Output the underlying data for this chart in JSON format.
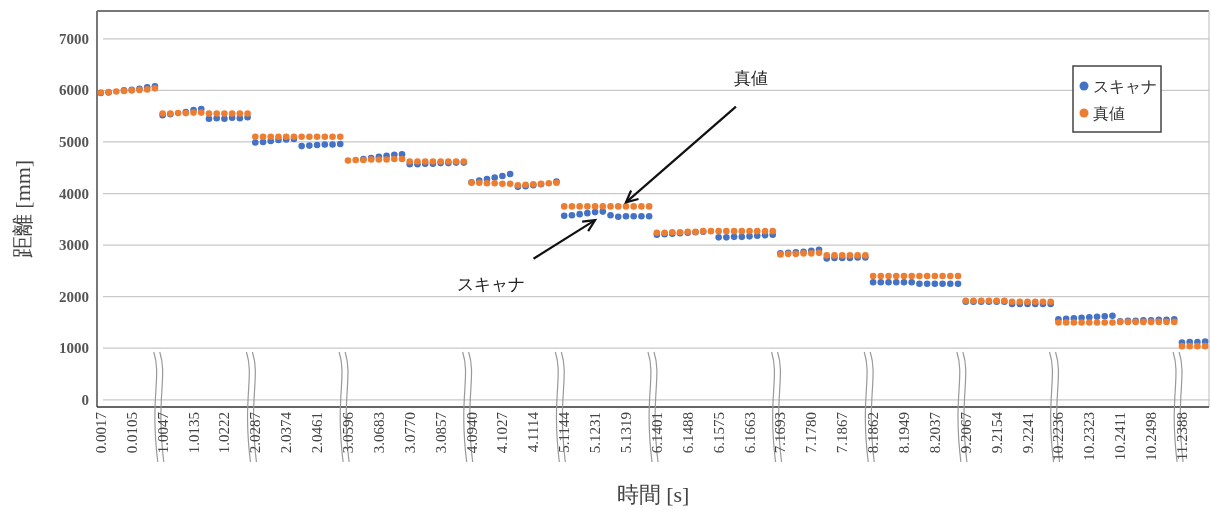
{
  "chart_data": {
    "type": "scatter",
    "xlabel": "時間 [s]",
    "ylabel": "距離 [mm]",
    "categories": [
      "0.0017",
      null,
      null,
      null,
      "0.0105",
      null,
      null,
      null,
      "1.0047",
      null,
      null,
      null,
      "1.0135",
      null,
      null,
      null,
      "1.0222",
      null,
      null,
      null,
      "2.0287",
      null,
      null,
      null,
      "2.0374",
      null,
      null,
      null,
      "2.0461",
      null,
      null,
      null,
      "3.0596",
      null,
      null,
      null,
      "3.0683",
      null,
      null,
      null,
      "3.0770",
      null,
      null,
      null,
      "3.0857",
      null,
      null,
      null,
      "4.0940",
      null,
      null,
      null,
      "4.1027",
      null,
      null,
      null,
      "4.1114",
      null,
      null,
      null,
      "5.1144",
      null,
      null,
      null,
      "5.1231",
      null,
      null,
      null,
      "5.1319",
      null,
      null,
      null,
      "6.1401",
      null,
      null,
      null,
      "6.1488",
      null,
      null,
      null,
      "6.1575",
      null,
      null,
      null,
      "6.1663",
      null,
      null,
      null,
      "7.1693",
      null,
      null,
      null,
      "7.1780",
      null,
      null,
      null,
      "7.1867",
      null,
      null,
      null,
      "8.1862",
      null,
      null,
      null,
      "8.1949",
      null,
      null,
      null,
      "8.2037",
      null,
      null,
      null,
      "9.2067",
      null,
      null,
      null,
      "9.2154",
      null,
      null,
      null,
      "9.2241",
      null,
      null,
      null,
      "10.2236",
      null,
      null,
      null,
      "10.2323",
      null,
      null,
      null,
      "10.2411",
      null,
      null,
      null,
      "10.2498",
      null,
      null,
      null,
      "11.2388",
      null,
      null,
      null
    ],
    "series": [
      {
        "name": "スキャナ",
        "color": "#4472c4",
        "values": [
          5950,
          5960,
          null,
          6000,
          6010,
          6030,
          6060,
          6080,
          5520,
          5540,
          null,
          5580,
          5620,
          5640,
          5450,
          5460,
          5450,
          5470,
          5460,
          5480,
          4990,
          5000,
          5020,
          5040,
          5050,
          5060,
          4920,
          4930,
          4940,
          4950,
          4950,
          4960,
          null,
          null,
          4670,
          4690,
          4710,
          4730,
          4750,
          4760,
          4570,
          4570,
          4580,
          4580,
          4590,
          4590,
          4600,
          4600,
          4220,
          4250,
          4280,
          4310,
          4340,
          4380,
          4130,
          4140,
          4160,
          4180,
          null,
          4230,
          3570,
          3580,
          3600,
          3620,
          3640,
          3650,
          3580,
          3550,
          3560,
          3560,
          3560,
          3560,
          3200,
          3210,
          3220,
          3230,
          3240,
          3250,
          3260,
          null,
          3150,
          3150,
          3160,
          3160,
          3170,
          3180,
          3190,
          3200,
          2840,
          2850,
          2860,
          2870,
          2890,
          2910,
          2740,
          2750,
          2750,
          2750,
          2760,
          2760,
          2280,
          2280,
          2280,
          2280,
          2280,
          2280,
          2250,
          2250,
          2250,
          2250,
          2250,
          2250,
          1900,
          1900,
          1900,
          1900,
          1900,
          1900,
          1860,
          1860,
          1860,
          1860,
          1860,
          1860,
          1560,
          1570,
          1580,
          1590,
          1600,
          1610,
          1620,
          1630,
          1520,
          1530,
          1530,
          1540,
          1540,
          1550,
          1550,
          1560,
          1110,
          1120,
          1120,
          1130
        ]
      },
      {
        "name": "真値",
        "color": "#ed7d31",
        "values": [
          5960,
          5970,
          5980,
          5990,
          6000,
          6010,
          6020,
          6040,
          5550,
          5550,
          5560,
          5560,
          5570,
          5570,
          5550,
          5550,
          5550,
          5550,
          5550,
          5550,
          5100,
          5100,
          5100,
          5100,
          5100,
          5100,
          5100,
          5100,
          5100,
          5100,
          5100,
          5100,
          4640,
          4650,
          4650,
          4660,
          4660,
          4660,
          4670,
          4670,
          4620,
          4620,
          4620,
          4620,
          4620,
          4620,
          4620,
          4620,
          4210,
          4210,
          4200,
          4200,
          4190,
          4190,
          4160,
          4170,
          4180,
          4190,
          4200,
          4210,
          3750,
          3750,
          3750,
          3750,
          3750,
          3750,
          3750,
          3750,
          3750,
          3750,
          3750,
          3750,
          3240,
          3240,
          3250,
          3250,
          3260,
          3260,
          3270,
          3270,
          3270,
          3270,
          3270,
          3270,
          3270,
          3270,
          3270,
          3270,
          2820,
          2830,
          2830,
          2840,
          2840,
          2850,
          2800,
          2800,
          2800,
          2800,
          2800,
          2800,
          2400,
          2400,
          2400,
          2400,
          2400,
          2400,
          2400,
          2400,
          2400,
          2400,
          2400,
          2400,
          1920,
          1920,
          1920,
          1920,
          1920,
          1920,
          1900,
          1900,
          1900,
          1900,
          1900,
          1900,
          1500,
          1500,
          1500,
          1500,
          1500,
          1500,
          1500,
          1500,
          1510,
          1510,
          1510,
          1510,
          1510,
          1510,
          1510,
          1510,
          1040,
          1040,
          1040,
          1040
        ]
      }
    ],
    "ylim": [
      -140,
      7540
    ],
    "yticks": [
      0,
      1000,
      2000,
      3000,
      4000,
      5000,
      6000,
      7000
    ],
    "grid": "y",
    "legend": "top right",
    "marker": "circle",
    "annotations": [
      {
        "text": "真値",
        "x": "5.1319",
        "y": 3750
      },
      {
        "text": "スキャナ",
        "x": "5.1231",
        "y": 3600
      }
    ]
  }
}
